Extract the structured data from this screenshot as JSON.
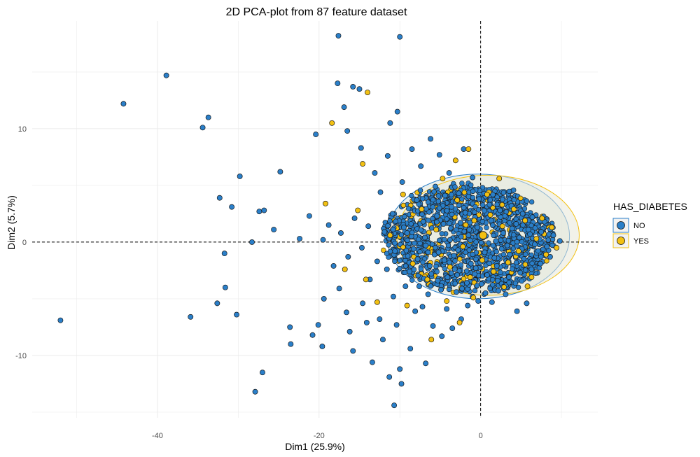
{
  "chart_data": {
    "type": "scatter",
    "title": "2D PCA-plot from 87 feature dataset",
    "xlabel": "Dim1 (25.9%)",
    "ylabel": "Dim2 (5.7%)",
    "xlim": [
      -55.5,
      14.5
    ],
    "ylim": [
      -15.5,
      19.5
    ],
    "x_ticks": [
      -40,
      -20,
      0
    ],
    "y_ticks": [
      -10,
      0,
      10
    ],
    "x_tick_labels": [
      "-40",
      "-20",
      "0"
    ],
    "y_tick_labels": [
      "-10",
      "0",
      "10"
    ],
    "grid": true,
    "reference_lines": {
      "x": 0,
      "y": 0,
      "style": "dashed"
    },
    "legend": {
      "title": "HAS_DIABETES",
      "position": "right",
      "entries": [
        {
          "name": "NO",
          "color": "#2a7fc9"
        },
        {
          "name": "YES",
          "color": "#f2c012"
        }
      ]
    },
    "series": [
      {
        "name": "NO",
        "color": "#2a7fc9",
        "points": [
          [
            -52,
            -6.9
          ],
          [
            -44.2,
            12.2
          ],
          [
            -38.9,
            14.7
          ],
          [
            -34.4,
            10.1
          ],
          [
            -33.7,
            11
          ],
          [
            -32.3,
            3.9
          ],
          [
            -31.7,
            -1
          ],
          [
            -31.6,
            -4
          ],
          [
            -30.8,
            3.1
          ],
          [
            -32.6,
            -5.4
          ],
          [
            -35.9,
            -6.6
          ],
          [
            -30.2,
            -6.4
          ],
          [
            -29.8,
            5.8
          ],
          [
            -28.3,
            0
          ],
          [
            -27.4,
            2.7
          ],
          [
            -26.8,
            2.8
          ],
          [
            -25.6,
            1.1
          ],
          [
            -24.8,
            6.2
          ],
          [
            -22.4,
            0.3
          ],
          [
            -21.2,
            2.3
          ],
          [
            -20.4,
            9.5
          ],
          [
            -27.9,
            -13.2
          ],
          [
            -27,
            -11.5
          ],
          [
            -23.6,
            -7.5
          ],
          [
            -23.5,
            -9
          ],
          [
            -20.8,
            -8.2
          ],
          [
            -20.1,
            -7.3
          ],
          [
            -19.6,
            -9.2
          ],
          [
            -19.4,
            -5
          ],
          [
            -19.5,
            0.2
          ],
          [
            -17.6,
            18.2
          ],
          [
            -17.7,
            14
          ],
          [
            -16.9,
            11.9
          ],
          [
            -16.5,
            9.8
          ],
          [
            -15.8,
            13.7
          ],
          [
            -15,
            13.5
          ],
          [
            -10,
            18.1
          ],
          [
            -11.2,
            10.5
          ],
          [
            -10.3,
            11.5
          ],
          [
            -14.8,
            8.3
          ],
          [
            -18.8,
            1.5
          ],
          [
            -18.2,
            -2.1
          ],
          [
            -17.5,
            -4.1
          ],
          [
            -16.6,
            -6.2
          ],
          [
            -16.2,
            -7.9
          ],
          [
            -15.8,
            -9.6
          ],
          [
            -14.6,
            -5.4
          ],
          [
            -14.1,
            -7.1
          ],
          [
            -13.7,
            -3.3
          ],
          [
            -13.4,
            -10.6
          ],
          [
            -12.5,
            -6.8
          ],
          [
            -12.1,
            -8.6
          ],
          [
            -11.6,
            -2.4
          ],
          [
            -11.3,
            -11.9
          ],
          [
            -10.8,
            -4.8
          ],
          [
            -10.4,
            -7.3
          ],
          [
            -10,
            -11.2
          ],
          [
            -9.8,
            -12.5
          ],
          [
            -10.7,
            -14.4
          ],
          [
            -9.3,
            -3.9
          ],
          [
            -8.7,
            -9.4
          ],
          [
            -8.1,
            -6.1
          ],
          [
            -7.8,
            -1.5
          ],
          [
            -7.2,
            -5.7
          ],
          [
            -6.8,
            -10.7
          ],
          [
            -6.5,
            -4.6
          ],
          [
            -5.9,
            -7.4
          ],
          [
            -5.3,
            -3.4
          ],
          [
            -4.8,
            -8.3
          ],
          [
            -4.2,
            -5.9
          ],
          [
            -3.5,
            -7.6
          ],
          [
            -3,
            -4.4
          ],
          [
            -2.4,
            -6.8
          ],
          [
            -1.6,
            -5.6
          ],
          [
            -1,
            -4.8
          ],
          [
            -0.3,
            -5.2
          ],
          [
            0.6,
            -4.5
          ],
          [
            1.4,
            -5.3
          ],
          [
            2.2,
            -4.3
          ],
          [
            3.1,
            -4.6
          ],
          [
            4.5,
            -6.1
          ],
          [
            5.7,
            -5.4
          ],
          [
            -13.1,
            6.1
          ],
          [
            -12.4,
            4.4
          ],
          [
            -11.5,
            7.6
          ],
          [
            -10.9,
            2.5
          ],
          [
            -9.7,
            5.3
          ],
          [
            -9.1,
            0.8
          ],
          [
            -8.5,
            8.2
          ],
          [
            -7.9,
            3.7
          ],
          [
            -7.4,
            6.7
          ],
          [
            -6.8,
            -0.3
          ],
          [
            -6.2,
            9.1
          ],
          [
            -5.6,
            4.9
          ],
          [
            -5.1,
            7.7
          ],
          [
            -4.6,
            1.6
          ],
          [
            -3.9,
            6.1
          ],
          [
            -3.3,
            -1.2
          ],
          [
            -2.7,
            4.3
          ],
          [
            -2.1,
            8.2
          ],
          [
            -1.5,
            0.6
          ],
          [
            -1,
            5.7
          ],
          [
            -0.6,
            -2.3
          ],
          [
            -7.1,
            1.8
          ],
          [
            -6.3,
            -2.1
          ],
          [
            -5.4,
            2.3
          ],
          [
            -4.5,
            -1.6
          ],
          [
            -3.6,
            3.1
          ],
          [
            -2.8,
            -0.7
          ],
          [
            -1.9,
            2.6
          ],
          [
            -1.2,
            -1.9
          ],
          [
            -0.4,
            1.3
          ],
          [
            0.5,
            -0.9
          ],
          [
            1.3,
            1.9
          ],
          [
            2,
            -2.1
          ],
          [
            2.8,
            0.8
          ],
          [
            3.6,
            -1.1
          ],
          [
            4.4,
            1.6
          ],
          [
            5.1,
            -0.6
          ],
          [
            5.9,
            1.1
          ],
          [
            6.7,
            -0.2
          ],
          [
            7.5,
            0.9
          ],
          [
            8.2,
            -0.4
          ],
          [
            9,
            0.6
          ],
          [
            9.8,
            0.1
          ],
          [
            1.1,
            3.3
          ],
          [
            2.4,
            2.8
          ],
          [
            3.8,
            3.2
          ],
          [
            5.2,
            2.5
          ],
          [
            6.4,
            2.2
          ],
          [
            0.8,
            -2.9
          ],
          [
            2.1,
            -3.4
          ],
          [
            3.5,
            -3.1
          ],
          [
            4.9,
            -2.7
          ],
          [
            6.3,
            -2.4
          ],
          [
            7.4,
            -1.9
          ],
          [
            8.6,
            -1.3
          ],
          [
            -0.2,
            3.8
          ],
          [
            -1.7,
            -3.6
          ],
          [
            -2.9,
            -2.9
          ],
          [
            -4.1,
            -3.1
          ],
          [
            -5.7,
            -1.1
          ],
          [
            -6.9,
            0.4
          ],
          [
            -8.3,
            -0.6
          ],
          [
            -9.5,
            1.3
          ],
          [
            -10.6,
            -0.8
          ],
          [
            -11.9,
            0.9
          ],
          [
            -12.8,
            -1.7
          ],
          [
            -13.9,
            1.4
          ],
          [
            -14.7,
            -0.5
          ],
          [
            -15.6,
            2.1
          ],
          [
            -16.4,
            -1.3
          ],
          [
            -17.3,
            0.8
          ],
          [
            -8.8,
            -2.6
          ],
          [
            -7.6,
            -3.9
          ],
          [
            -6.1,
            -2.8
          ],
          [
            -4.9,
            -4.2
          ],
          [
            -3.2,
            -2.4
          ],
          [
            -2.3,
            -4.1
          ],
          [
            0.1,
            -3.7
          ],
          [
            1.7,
            -1.4
          ],
          [
            3.3,
            -0.3
          ],
          [
            4.8,
            0.4
          ],
          [
            6.1,
            0.7
          ],
          [
            7.9,
            1.8
          ],
          [
            -1.4,
            1.1
          ],
          [
            -0.7,
            2.2
          ],
          [
            0.3,
            0.4
          ],
          [
            1.9,
            0.1
          ],
          [
            2.6,
            -0.6
          ],
          [
            3.9,
            1.2
          ],
          [
            -3.8,
            0.2
          ],
          [
            -4.4,
            4.1
          ],
          [
            -5.2,
            -0.9
          ],
          [
            -2.5,
            1.7
          ]
        ]
      },
      {
        "name": "YES",
        "color": "#f2c012",
        "points": [
          [
            -18.4,
            10.5
          ],
          [
            -14,
            13.2
          ],
          [
            -14.6,
            6.9
          ],
          [
            -19.2,
            3.4
          ],
          [
            -15.2,
            2.8
          ],
          [
            -16.8,
            -2.4
          ],
          [
            -14.2,
            -3.3
          ],
          [
            -12.8,
            -5.3
          ],
          [
            -11.2,
            0.6
          ],
          [
            -9.6,
            4.2
          ],
          [
            -8.4,
            -1.9
          ],
          [
            -7.3,
            2.9
          ],
          [
            -6.6,
            -3.3
          ],
          [
            -5.5,
            1.1
          ],
          [
            -4.7,
            5.6
          ],
          [
            -3.8,
            -2.2
          ],
          [
            -2.9,
            3.7
          ],
          [
            -2.2,
            -0.4
          ],
          [
            -1.3,
            -3.1
          ],
          [
            -0.8,
            1.9
          ],
          [
            0.2,
            -1.6
          ],
          [
            0.3,
            0.5
          ],
          [
            1.2,
            2.4
          ],
          [
            1.6,
            -2.6
          ],
          [
            2.7,
            1.4
          ],
          [
            3.4,
            -1.8
          ],
          [
            4.1,
            2.9
          ],
          [
            4.7,
            -0.8
          ],
          [
            5.5,
            1.9
          ],
          [
            6.3,
            -3.1
          ],
          [
            6.9,
            0.3
          ],
          [
            7.6,
            2.1
          ],
          [
            8.1,
            -1.1
          ],
          [
            8.8,
            1.3
          ],
          [
            9.4,
            -0.5
          ],
          [
            5.8,
            -3.9
          ],
          [
            -1.5,
            8.2
          ],
          [
            -3.1,
            7.2
          ],
          [
            0.8,
            4.2
          ],
          [
            2.3,
            5.6
          ],
          [
            -9.1,
            -5.6
          ],
          [
            -6.1,
            -8.6
          ],
          [
            -4.2,
            -5.2
          ],
          [
            -2.6,
            -7.1
          ],
          [
            -0.9,
            -4.9
          ]
        ]
      }
    ],
    "ellipses": [
      {
        "series": "NO",
        "color": "#2a7fc9",
        "fill": "#dde6e0",
        "cx": -0.3,
        "cy": 0.5,
        "rx": 11.3,
        "ry": 5.5
      },
      {
        "series": "YES",
        "color": "#f2c012",
        "fill": "#e8e8d8",
        "cx": 0.9,
        "cy": 0.6,
        "rx": 11.3,
        "ry": 5.3
      }
    ],
    "centroids": [
      {
        "series": "NO",
        "color": "#2a7fc9",
        "x": 0,
        "y": 0.5
      },
      {
        "series": "YES",
        "color": "#f2c012",
        "x": 0.3,
        "y": 0.6
      }
    ]
  }
}
